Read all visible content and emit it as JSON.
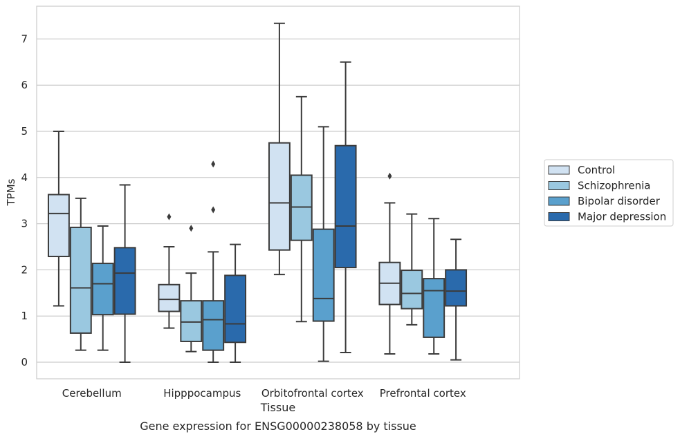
{
  "chart_data": {
    "type": "box",
    "caption": "Gene expression for ENSG00000238058 by tissue",
    "xlabel": "Tissue",
    "ylabel": "TPMs",
    "ylim": [
      -0.35,
      7.7
    ],
    "yticks": [
      0,
      1,
      2,
      3,
      4,
      5,
      6,
      7
    ],
    "grid": "horizontal",
    "legend_position": "right",
    "categories": [
      "Cerebellum",
      "Hipppocampus",
      "Orbitofrontal cortex",
      "Prefrontal cortex"
    ],
    "series": [
      {
        "name": "Control",
        "color": "#d1e2f2",
        "boxes": [
          {
            "whislo": 1.22,
            "q1": 2.29,
            "med": 3.22,
            "q3": 3.63,
            "whishi": 5.0,
            "fliers": []
          },
          {
            "whislo": 0.74,
            "q1": 1.1,
            "med": 1.36,
            "q3": 1.68,
            "whishi": 2.5,
            "fliers": [
              3.15
            ]
          },
          {
            "whislo": 1.9,
            "q1": 2.43,
            "med": 3.45,
            "q3": 4.75,
            "whishi": 7.34,
            "fliers": []
          },
          {
            "whislo": 0.18,
            "q1": 1.25,
            "med": 1.71,
            "q3": 2.16,
            "whishi": 3.45,
            "fliers": [
              4.03
            ]
          }
        ]
      },
      {
        "name": "Schizophrenia",
        "color": "#9ac8e0",
        "boxes": [
          {
            "whislo": 0.26,
            "q1": 0.63,
            "med": 1.61,
            "q3": 2.92,
            "whishi": 3.55,
            "fliers": []
          },
          {
            "whislo": 0.23,
            "q1": 0.45,
            "med": 0.87,
            "q3": 1.33,
            "whishi": 1.93,
            "fliers": [
              2.9
            ]
          },
          {
            "whislo": 0.88,
            "q1": 2.64,
            "med": 3.36,
            "q3": 4.05,
            "whishi": 5.75,
            "fliers": []
          },
          {
            "whislo": 0.81,
            "q1": 1.16,
            "med": 1.49,
            "q3": 1.99,
            "whishi": 3.21,
            "fliers": []
          }
        ]
      },
      {
        "name": "Bipolar disorder",
        "color": "#5aa0cd",
        "boxes": [
          {
            "whislo": 0.26,
            "q1": 1.03,
            "med": 1.7,
            "q3": 2.14,
            "whishi": 2.95,
            "fliers": []
          },
          {
            "whislo": 0.0,
            "q1": 0.26,
            "med": 0.92,
            "q3": 1.33,
            "whishi": 2.39,
            "fliers": [
              3.3,
              4.29
            ]
          },
          {
            "whislo": 0.02,
            "q1": 0.89,
            "med": 1.38,
            "q3": 2.88,
            "whishi": 5.1,
            "fliers": []
          },
          {
            "whislo": 0.18,
            "q1": 0.54,
            "med": 1.55,
            "q3": 1.81,
            "whishi": 3.11,
            "fliers": []
          }
        ]
      },
      {
        "name": "Major depression",
        "color": "#2a6aac",
        "boxes": [
          {
            "whislo": 0.0,
            "q1": 1.04,
            "med": 1.93,
            "q3": 2.48,
            "whishi": 3.84,
            "fliers": []
          },
          {
            "whislo": 0.0,
            "q1": 0.43,
            "med": 0.83,
            "q3": 1.88,
            "whishi": 2.55,
            "fliers": []
          },
          {
            "whislo": 0.21,
            "q1": 2.05,
            "med": 2.95,
            "q3": 4.69,
            "whishi": 6.5,
            "fliers": []
          },
          {
            "whislo": 0.05,
            "q1": 1.22,
            "med": 1.54,
            "q3": 2.0,
            "whishi": 2.66,
            "fliers": []
          }
        ]
      }
    ]
  }
}
